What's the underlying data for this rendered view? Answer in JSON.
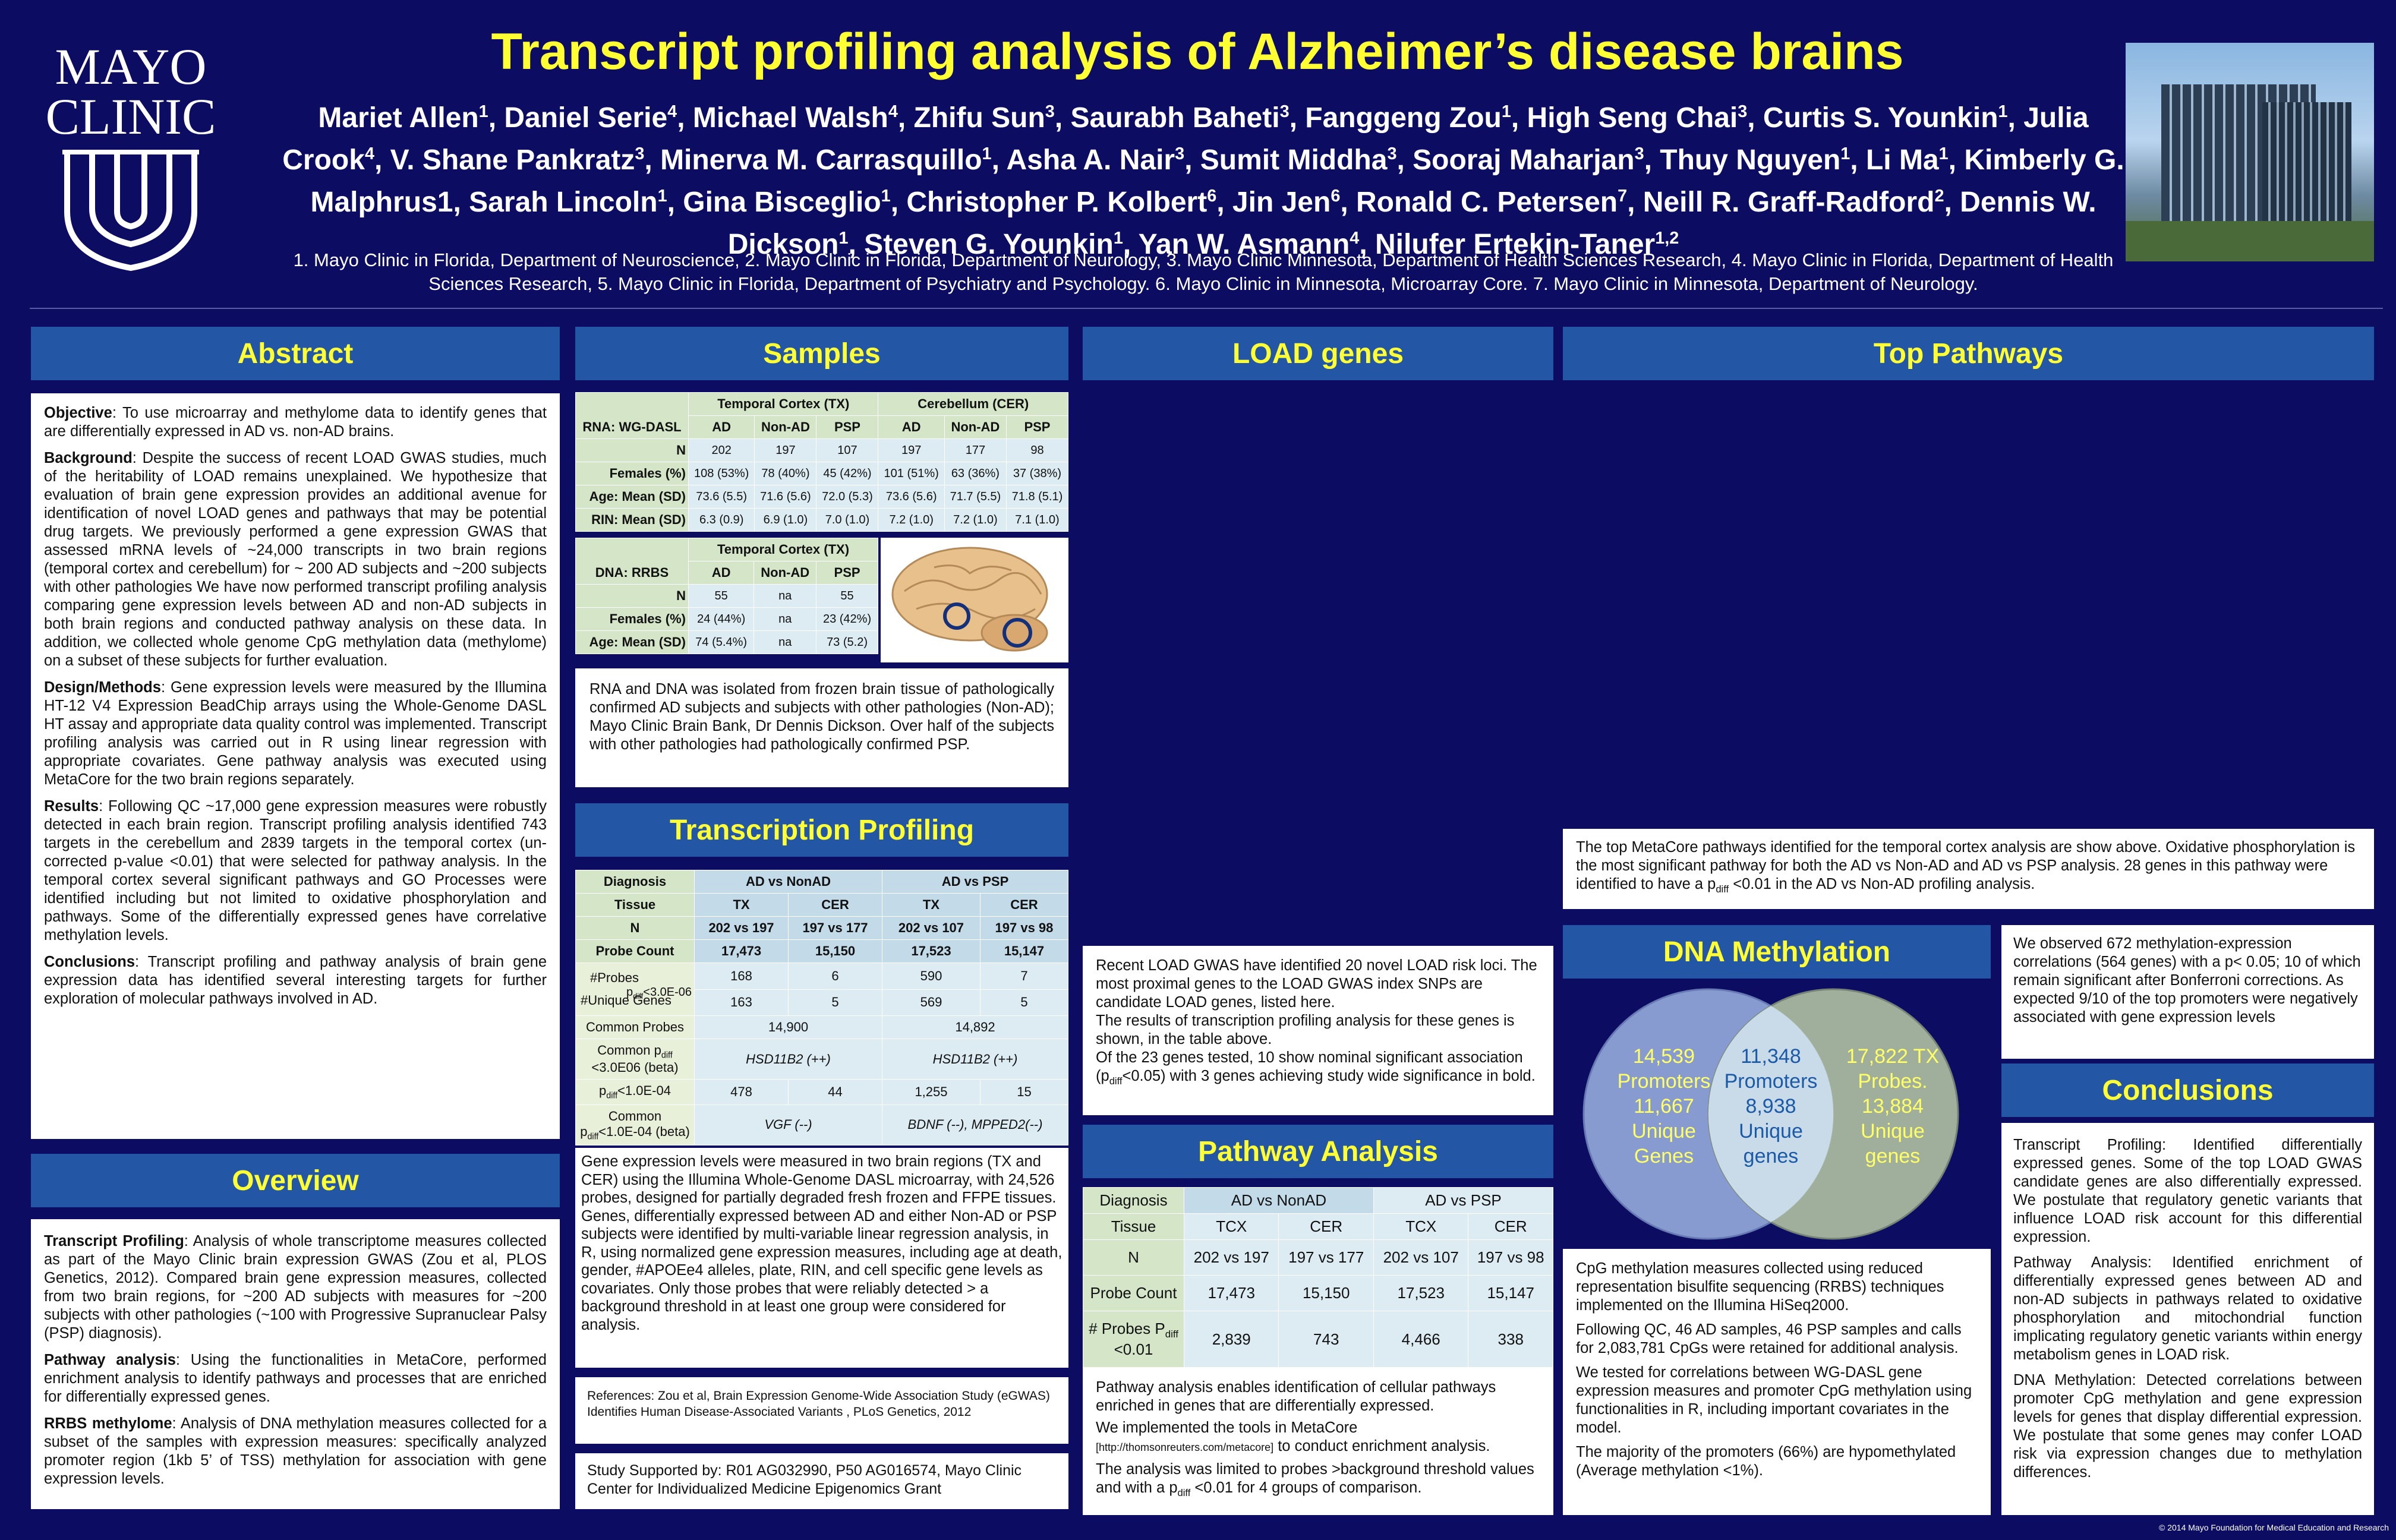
{
  "header": {
    "logo_line1": "MAYO",
    "logo_line2": "CLINIC",
    "title": "Transcript profiling analysis of Alzheimer’s disease brains",
    "authors": [
      {
        "name": "Mariet Allen",
        "sup": "1"
      },
      {
        "name": "Daniel Serie",
        "sup": "4"
      },
      {
        "name": "Michael Walsh",
        "sup": "4"
      },
      {
        "name": "Zhifu Sun",
        "sup": "3"
      },
      {
        "name": "Saurabh Baheti",
        "sup": "3"
      },
      {
        "name": "Fanggeng Zou",
        "sup": "1"
      },
      {
        "name": "High Seng Chai",
        "sup": "3"
      },
      {
        "name": "Curtis S. Younkin",
        "sup": "1"
      },
      {
        "name": "Julia Crook",
        "sup": "4"
      },
      {
        "name": "V. Shane Pankratz",
        "sup": "3"
      },
      {
        "name": "Minerva M. Carrasquillo",
        "sup": "1"
      },
      {
        "name": "Asha A. Nair",
        "sup": "3"
      },
      {
        "name": "Sumit Middha",
        "sup": "3"
      },
      {
        "name": "Sooraj Maharjan",
        "sup": "3"
      },
      {
        "name": "Thuy Nguyen",
        "sup": "1"
      },
      {
        "name": "Li Ma",
        "sup": "1"
      },
      {
        "name": "Kimberly G. Malphrus1",
        "sup": ""
      },
      {
        "name": "Sarah Lincoln",
        "sup": "1"
      },
      {
        "name": "Gina Bisceglio",
        "sup": "1"
      },
      {
        "name": "Christopher P. Kolbert",
        "sup": "6"
      },
      {
        "name": "Jin Jen",
        "sup": "6"
      },
      {
        "name": "Ronald C. Petersen",
        "sup": "7"
      },
      {
        "name": "Neill R. Graff-Radford",
        "sup": "2"
      },
      {
        "name": "Dennis W. Dickson",
        "sup": "1"
      },
      {
        "name": "Steven G. Younkin",
        "sup": "1"
      },
      {
        "name": "Yan W. Asmann",
        "sup": "4"
      },
      {
        "name": "Nilufer Ertekin-Taner",
        "sup": "1,2"
      }
    ],
    "affiliations": "1. Mayo Clinic in Florida, Department of Neuroscience, 2. Mayo Clinic in Florida, Department of Neurology, 3. Mayo Clinic Minnesota, Department of Health Sciences Research, 4. Mayo Clinic in Florida, Department of Health Sciences Research, 5. Mayo Clinic in Florida, Department of Psychiatry and Psychology. 6. Mayo Clinic in Minnesota, Microarray Core. 7. Mayo Clinic in Minnesota, Department of Neurology."
  },
  "abstract": {
    "heading": "Abstract",
    "paras": [
      {
        "lead": "Objective",
        "text": ": To use microarray and methylome data to identify genes that are differentially expressed in AD vs. non-AD brains."
      },
      {
        "lead": "Background",
        "text": ": Despite the success of recent LOAD GWAS studies, much of the heritability of LOAD remains unexplained. We hypothesize that evaluation of brain gene expression provides an additional avenue for identification of novel LOAD genes and pathways that may be potential drug targets. We previously performed a gene expression GWAS that assessed mRNA levels of ~24,000 transcripts in two brain regions (temporal cortex and cerebellum) for ~ 200 AD subjects and ~200 subjects with other pathologies We have now performed transcript profiling analysis comparing gene expression levels between AD and non-AD subjects in both brain regions and conducted pathway analysis on these data. In addition, we collected whole genome CpG methylation data (methylome) on a subset of these subjects for further evaluation."
      },
      {
        "lead": "Design/Methods",
        "text": ": Gene expression levels were measured by the Illumina HT-12 V4 Expression BeadChip arrays using the Whole-Genome DASL HT assay and appropriate data quality control was implemented. Transcript profiling analysis was carried out in R using linear regression with appropriate covariates. Gene pathway analysis was executed using MetaCore for the two brain regions separately."
      },
      {
        "lead": "Results",
        "text": ": Following QC ~17,000 gene expression measures were robustly detected in each brain region. Transcript profiling analysis identified 743 targets in the cerebellum and 2839 targets in the temporal cortex (un-corrected p-value <0.01) that were selected for pathway analysis. In the temporal cortex several significant pathways and GO Processes were identified including but not limited to oxidative phosphorylation and pathways. Some of the differentially expressed genes have correlative methylation levels."
      },
      {
        "lead": "Conclusions",
        "text": ": Transcript profiling and pathway analysis of brain gene expression data has identified several interesting targets for further exploration of molecular pathways involved in AD."
      }
    ]
  },
  "overview": {
    "heading": "Overview",
    "paras": [
      {
        "lead": "Transcript Profiling",
        "text": ": Analysis of whole transcriptome measures collected as part of the Mayo Clinic brain expression GWAS (Zou et al, PLOS Genetics, 2012). Compared brain gene expression measures, collected from two brain regions, for ~200 AD subjects with measures for ~200 subjects with other pathologies (~100 with Progressive Supranuclear Palsy (PSP) diagnosis)."
      },
      {
        "lead": "Pathway analysis",
        "text": ": Using the functionalities in MetaCore, performed enrichment analysis to identify pathways and processes that are enriched for differentially expressed genes."
      },
      {
        "lead": "RRBS methylome",
        "text": ": Analysis of DNA methylation measures collected for a subset of the samples with expression measures: specifically analyzed promoter region (1kb 5’ of TSS) methylation for association with gene expression levels."
      }
    ]
  },
  "samples": {
    "heading": "Samples",
    "rna_label": "RNA: WG-DASL",
    "group_tx": "Temporal Cortex (TX)",
    "group_cer": "Cerebellum (CER)",
    "cols": [
      "AD",
      "Non-AD",
      "PSP",
      "AD",
      "Non-AD",
      "PSP"
    ],
    "rows": [
      {
        "label": "N",
        "cells": [
          "202",
          "197",
          "107",
          "197",
          "177",
          "98"
        ]
      },
      {
        "label": "Females (%)",
        "cells": [
          "108 (53%)",
          "78 (40%)",
          "45 (42%)",
          "101 (51%)",
          "63 (36%)",
          "37 (38%)"
        ]
      },
      {
        "label": "Age: Mean (SD)",
        "cells": [
          "73.6 (5.5)",
          "71.6 (5.6)",
          "72.0 (5.3)",
          "73.6 (5.6)",
          "71.7 (5.5)",
          "71.8 (5.1)"
        ]
      },
      {
        "label": "RIN: Mean (SD)",
        "cells": [
          "6.3 (0.9)",
          "6.9 (1.0)",
          "7.0 (1.0)",
          "7.2 (1.0)",
          "7.2 (1.0)",
          "7.1 (1.0)"
        ]
      }
    ],
    "dna_label": "DNA: RRBS",
    "dna_group": "Temporal Cortex (TX)",
    "dna_cols": [
      "AD",
      "Non-AD",
      "PSP"
    ],
    "dna_rows": [
      {
        "label": "N",
        "cells": [
          "55",
          "na",
          "55"
        ]
      },
      {
        "label": "Females (%)",
        "cells": [
          "24 (44%)",
          "na",
          "23 (42%)"
        ]
      },
      {
        "label": "Age: Mean (SD)",
        "cells": [
          "74 (5.4%)",
          "na",
          "73 (5.2)"
        ]
      }
    ],
    "text": "RNA and DNA was isolated from frozen brain tissue of pathologically confirmed AD subjects and subjects with other pathologies (Non-AD); Mayo Clinic Brain Bank, Dr Dennis Dickson. Over half of the subjects with other pathologies had pathologically confirmed PSP."
  },
  "profiling": {
    "heading": "Transcription Profiling",
    "diag": "Diagnosis",
    "ad_non": "AD vs NonAD",
    "ad_psp": "AD vs PSP",
    "tissue": "Tissue",
    "tissues": [
      "TX",
      "CER",
      "TX",
      "CER"
    ],
    "n_label": "N",
    "n": [
      "202 vs 197",
      "197 vs 177",
      "202 vs 107",
      "197 vs 98"
    ],
    "probe_label": "Probe Count",
    "probe": [
      "17,473",
      "15,150",
      "17,523",
      "15,147"
    ],
    "probes_label": "#Probes",
    "probes": [
      "168",
      "6",
      "590",
      "7"
    ],
    "uniq_label": "#Unique Genes",
    "pdiff_label": "p",
    "pdiff_sub": "diff",
    "pdiff_suffix": "<3.0E-06",
    "uniq": [
      "163",
      "5",
      "569",
      "5"
    ],
    "common_label": "Common Probes",
    "common": [
      "14,900",
      "14,892"
    ],
    "common_p_a": "Common p",
    "common_p_sub": "diff",
    "common_p_b": " <3.0E06 (beta)",
    "common_p": [
      "HSD11B2 (++)",
      "HSD11B2 (++)"
    ],
    "pdiff2_a": "p",
    "pdiff2_sub": "diff",
    "pdiff2_b": "<1.0E-04",
    "pdiff2": [
      "478",
      "44",
      "1,255",
      "15"
    ],
    "common2_a": "Common p",
    "common2_sub": "diff",
    "common2_b": "<1.0E-04 (beta)",
    "common2": [
      "VGF (--)",
      "BDNF (--), MPPED2(--)"
    ],
    "text": "Gene expression levels were measured in two brain regions (TX and CER) using the Illumina Whole-Genome DASL microarray, with 24,526 probes, designed for partially degraded fresh frozen and FFPE tissues. Genes, differentially expressed between AD and either Non-AD or PSP subjects were identified by multi-variable linear regression analysis, in R, using normalized gene expression measures, including age at death, gender, #APOEe4 alleles, plate, RIN, and cell specific gene levels as covariates. Only those probes that were reliably detected > a background threshold in at least one group were considered for analysis.",
    "refs": "References: Zou et al, Brain Expression Genome-Wide Association Study (eGWAS) Identifies Human Disease-Associated Variants , PLoS Genetics, 2012",
    "support": "Study Supported by: R01 AG032990, P50 AG016574, Mayo Clinic Center for Individualized Medicine Epigenomics Grant"
  },
  "load": {
    "heading": "LOAD genes",
    "text1": "Recent LOAD GWAS have identified 20 novel LOAD risk loci. The most proximal genes to the LOAD GWAS index SNPs are candidate LOAD genes, listed here.",
    "text2": "The results of transcription profiling analysis for these genes is shown, in the table above.",
    "text3a": "Of the 23 genes tested, 10 show nominal significant association (p",
    "text3sub": "diff",
    "text3b": "<0.05) with 3 genes achieving study wide significance in bold."
  },
  "pathway": {
    "heading": "Pathway Analysis",
    "diag": "Diagnosis",
    "ad_non": "AD vs NonAD",
    "ad_psp": "AD vs PSP",
    "tissue": "Tissue",
    "tissues": [
      "TCX",
      "CER",
      "TCX",
      "CER"
    ],
    "n_label": "N",
    "n": [
      "202 vs 197",
      "197 vs 177",
      "202 vs 107",
      "197 vs 98"
    ],
    "probe_label": "Probe Count",
    "probe": [
      "17,473",
      "15,150",
      "17,523",
      "15,147"
    ],
    "probes_a": "# Probes P",
    "probes_sub": "diff",
    "probes_b": "<0.01",
    "probes": [
      "2,839",
      "743",
      "4,466",
      "338"
    ],
    "text1": "Pathway analysis enables identification of cellular pathways enriched in genes that are differentially expressed.",
    "text2": "We implemented the tools in MetaCore",
    "url": "[http://thomsonreuters.com/metacore]",
    "text3": " to conduct enrichment analysis.",
    "text4a": "The analysis was limited to probes >background threshold values and with a p",
    "text4sub": "diff",
    "text4b": " <0.01 for 4 groups of comparison."
  },
  "top": {
    "heading": "Top Pathways",
    "text_a": "The top MetaCore pathways identified for the temporal cortex analysis are show above. Oxidative phosphorylation is the most significant pathway for both the AD vs Non-AD and AD vs PSP analysis. 28 genes in this pathway were identified to have a p",
    "text_sub": "diff",
    "text_b": " <0.01 in the AD vs Non-AD profiling analysis."
  },
  "methylation": {
    "heading": "DNA Methylation",
    "venn_left": [
      "14,539",
      "Promoters",
      "11,667",
      "Unique",
      "Genes"
    ],
    "venn_mid": [
      "11,348",
      "Promoters",
      "8,938",
      "Unique",
      "genes"
    ],
    "venn_right": [
      "17,822 TX",
      "Probes.",
      "13,884",
      "Unique",
      "genes"
    ],
    "paras": [
      "CpG methylation measures collected using reduced representation bisulfite sequencing (RRBS) techniques implemented on the Illumina HiSeq2000.",
      "Following QC, 46 AD samples, 46 PSP samples and calls for 2,083,781 CpGs were retained for additional analysis.",
      "We tested for correlations between WG-DASL gene expression measures and promoter CpG methylation using functionalities in R, including important covariates in the model.",
      "The majority of the promoters (66%) are hypomethylated (Average methylation <1%)."
    ],
    "right_text": "We observed 672 methylation-expression correlations (564 genes) with a p< 0.05; 10 of which remain significant after Bonferroni corrections. As expected 9/10 of the top promoters were negatively associated with gene expression levels"
  },
  "conclusions": {
    "heading": "Conclusions",
    "paras": [
      "Transcript Profiling: Identified differentially expressed genes. Some of the top LOAD GWAS candidate genes are also differentially expressed. We postulate that regulatory genetic variants that influence LOAD risk account for this differential expression.",
      "Pathway Analysis: Identified enrichment of differentially expressed genes between AD and non-AD subjects in pathways related to oxidative phosphorylation and mitochondrial function implicating regulatory genetic variants within energy metabolism genes in LOAD risk.",
      "DNA Methylation: Detected correlations between promoter CpG methylation and gene expression levels for genes that display differential expression. We postulate that some genes may confer LOAD risk via expression changes due to methylation differences."
    ]
  },
  "footer": "© 2014 Mayo Foundation for Medical Education and Research",
  "colors": {
    "background": "#0c0c63",
    "heading_bg": "#2456a6",
    "heading_text": "#ffff33"
  }
}
